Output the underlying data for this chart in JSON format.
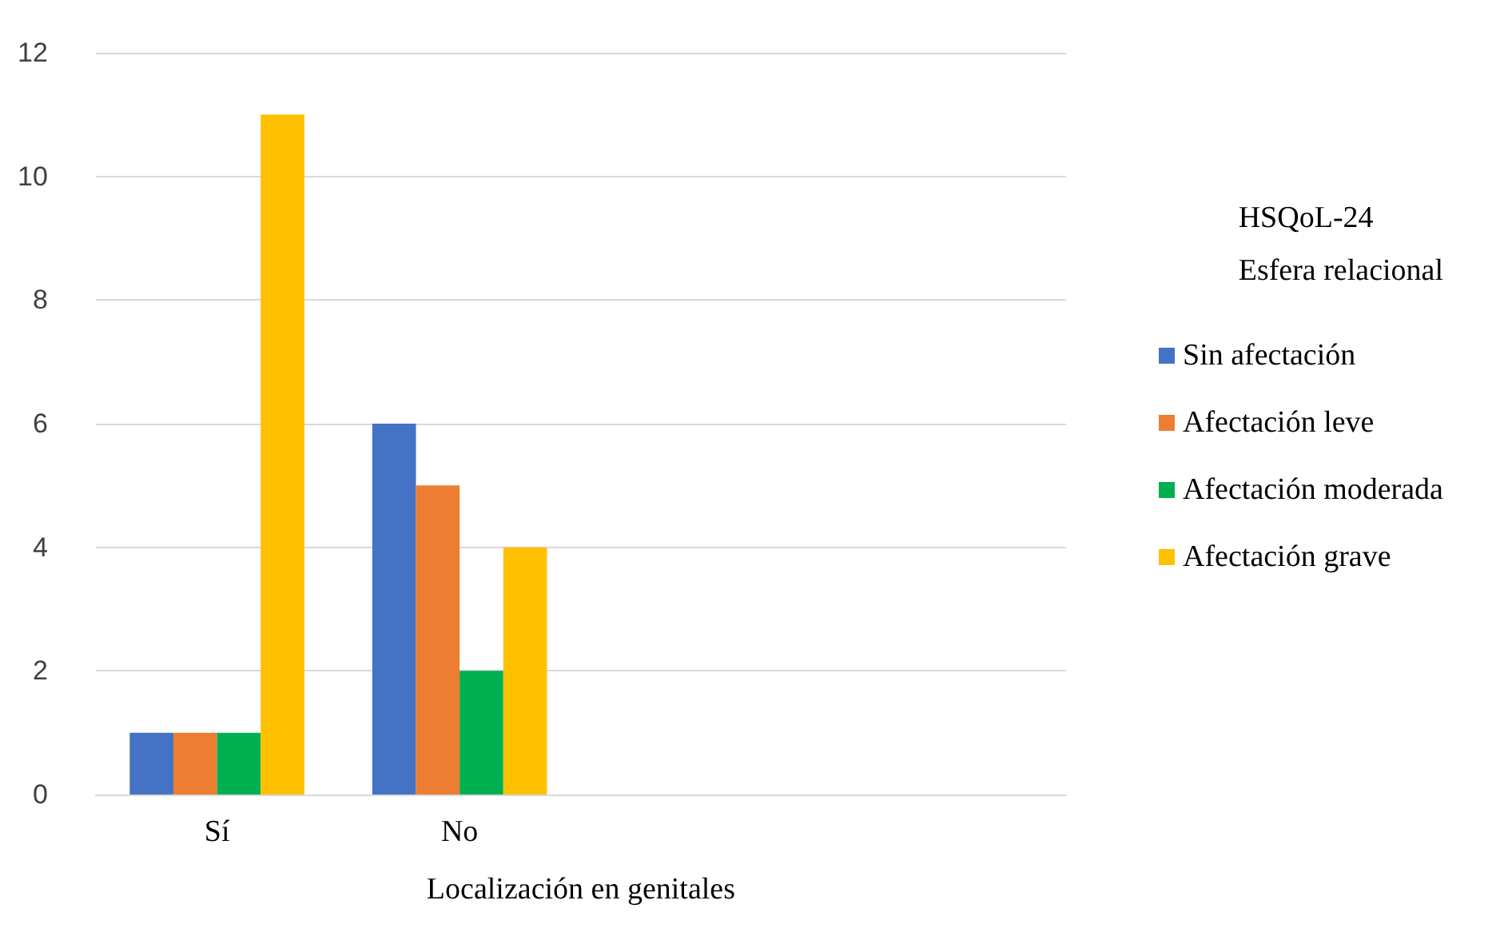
{
  "chart_data": {
    "type": "bar",
    "xlabel": "Localización en genitales",
    "legend_title": "HSQoL-24\nEsfera relacional",
    "categories": [
      "Sí",
      "No",
      null,
      null
    ],
    "series": [
      {
        "name": "Sin afectación",
        "color": "#4472c4",
        "values": [
          1,
          6,
          null,
          null
        ]
      },
      {
        "name": "Afectación leve",
        "color": "#ed7d31",
        "values": [
          1,
          5,
          null,
          null
        ]
      },
      {
        "name": "Afectación moderada",
        "color": "#00b050",
        "values": [
          1,
          2,
          null,
          null
        ]
      },
      {
        "name": "Afectación grave",
        "color": "#ffc000",
        "values": [
          11,
          4,
          null,
          null
        ]
      }
    ],
    "ylim": [
      0,
      12
    ],
    "yticks": [
      0,
      2,
      4,
      6,
      8,
      10,
      12
    ],
    "grid": "y",
    "legend": "right"
  }
}
